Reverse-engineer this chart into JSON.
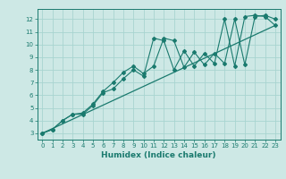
{
  "title": "",
  "xlabel": "Humidex (Indice chaleur)",
  "ylabel": "",
  "xlim": [
    -0.5,
    23.5
  ],
  "ylim": [
    2.5,
    12.8
  ],
  "xticks": [
    0,
    1,
    2,
    3,
    4,
    5,
    6,
    7,
    8,
    9,
    10,
    11,
    12,
    13,
    14,
    15,
    16,
    17,
    18,
    19,
    20,
    21,
    22,
    23
  ],
  "yticks": [
    3,
    4,
    5,
    6,
    7,
    8,
    9,
    10,
    11,
    12
  ],
  "bg_color": "#cde8e5",
  "grid_color": "#a8d4d0",
  "line_color": "#1a7a6e",
  "series1_x": [
    0,
    1,
    2,
    3,
    4,
    5,
    6,
    7,
    8,
    9,
    10,
    11,
    12,
    13,
    14,
    15,
    16,
    17,
    18,
    19,
    20,
    21,
    22,
    23
  ],
  "series1_y": [
    3.0,
    3.3,
    4.0,
    4.5,
    4.5,
    5.2,
    6.2,
    6.5,
    7.3,
    8.0,
    7.5,
    10.5,
    10.3,
    8.0,
    9.5,
    8.3,
    9.3,
    8.5,
    12.0,
    8.3,
    12.2,
    12.3,
    12.2,
    11.5
  ],
  "series2_x": [
    0,
    1,
    2,
    3,
    4,
    5,
    6,
    7,
    8,
    9,
    10,
    11,
    12,
    13,
    14,
    15,
    16,
    17,
    18,
    19,
    20,
    21,
    22,
    23
  ],
  "series2_y": [
    3.0,
    3.3,
    4.0,
    4.5,
    4.6,
    5.3,
    6.3,
    7.0,
    7.8,
    8.3,
    7.7,
    8.3,
    10.5,
    10.3,
    8.2,
    9.4,
    8.4,
    9.3,
    8.5,
    12.0,
    8.4,
    12.2,
    12.3,
    12.0
  ],
  "trend_x": [
    0,
    23
  ],
  "trend_y": [
    3.0,
    11.5
  ]
}
